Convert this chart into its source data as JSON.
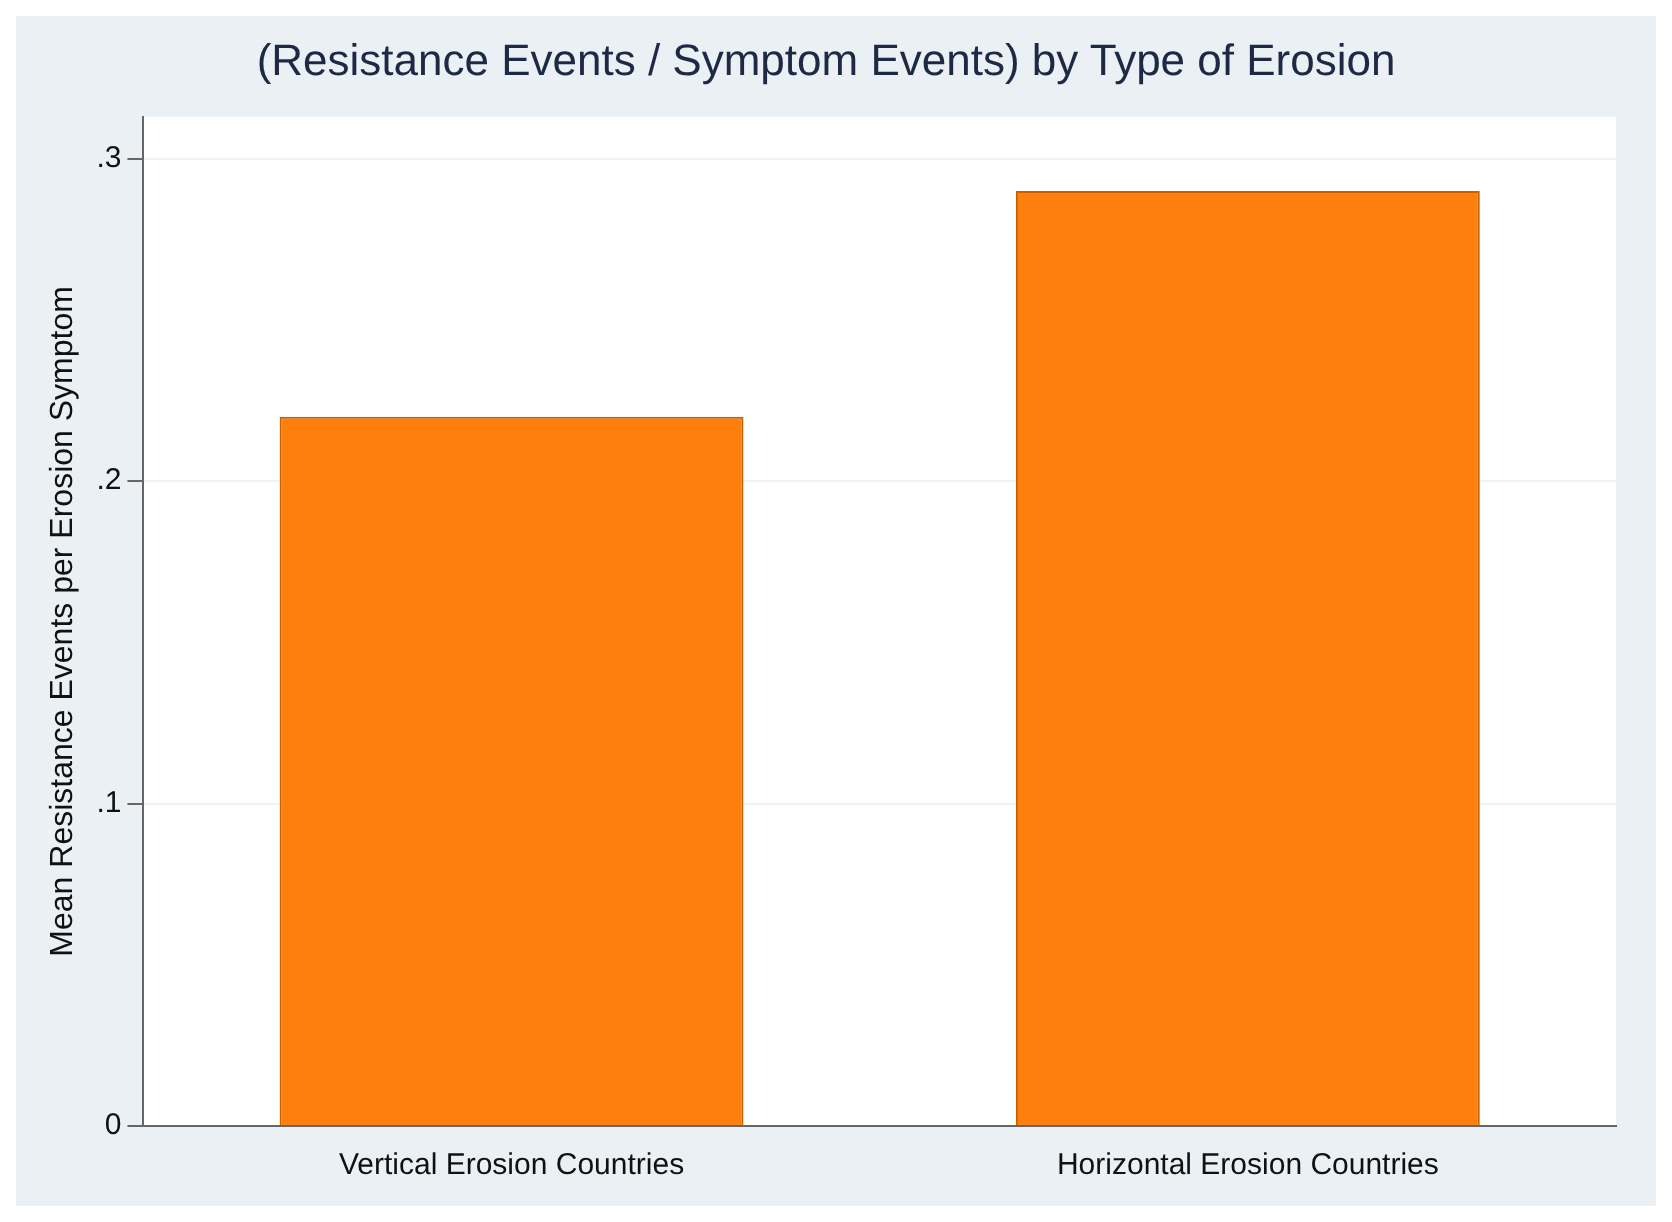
{
  "chart_data": {
    "type": "bar",
    "title": "(Resistance Events / Symptom Events) by Type of Erosion",
    "ylabel": "Mean Resistance Events per Erosion Symptom",
    "categories": [
      "Vertical Erosion Countries",
      "Horizontal Erosion Countries"
    ],
    "values": [
      0.22,
      0.29
    ],
    "color": "#ff7f0e",
    "ylim": [
      0,
      0.313
    ],
    "yticks": [
      0,
      {
        "value": 0.1,
        "label": ".1"
      },
      {
        "value": 0.2,
        "label": ".2"
      },
      {
        "value": 0.3,
        "label": ".3"
      }
    ],
    "grid": "y",
    "legend": false
  }
}
